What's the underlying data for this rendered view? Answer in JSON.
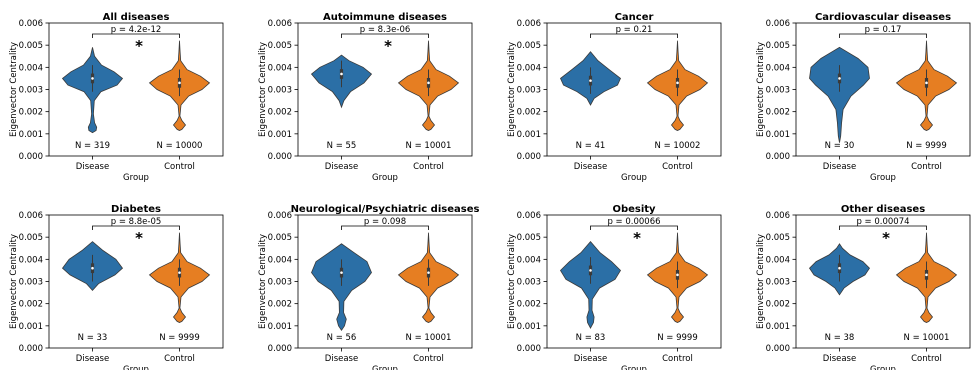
{
  "colors": {
    "disease": "#2b6fa6",
    "control": "#e67e22"
  },
  "chart_data": [
    {
      "type": "violin",
      "title": "All diseases",
      "xlabel": "Group",
      "ylabel": "Eigenvector Centrality",
      "categories": [
        "Disease",
        "Control"
      ],
      "ylim": [
        0,
        0.006
      ],
      "yticks": [
        "0.000",
        "0.001",
        "0.002",
        "0.003",
        "0.004",
        "0.005",
        "0.006"
      ],
      "p_label": "p = 4.2e-12",
      "significant": true,
      "n_labels": [
        "N = 319",
        "N = 10000"
      ],
      "medians": [
        0.0035,
        0.0033
      ]
    },
    {
      "type": "violin",
      "title": "Autoimmune diseases",
      "xlabel": "Group",
      "ylabel": "Eigenvector Centrality",
      "categories": [
        "Disease",
        "Control"
      ],
      "ylim": [
        0,
        0.006
      ],
      "yticks": [
        "0.000",
        "0.001",
        "0.002",
        "0.003",
        "0.004",
        "0.005",
        "0.006"
      ],
      "p_label": "p = 8.3e-06",
      "significant": true,
      "n_labels": [
        "N = 55",
        "N = 10001"
      ],
      "medians": [
        0.0037,
        0.0033
      ]
    },
    {
      "type": "violin",
      "title": "Cancer",
      "xlabel": "Group",
      "ylabel": "Eigenvector Centrality",
      "categories": [
        "Disease",
        "Control"
      ],
      "ylim": [
        0,
        0.006
      ],
      "yticks": [
        "0.000",
        "0.001",
        "0.002",
        "0.003",
        "0.004",
        "0.005",
        "0.006"
      ],
      "p_label": "p = 0.21",
      "significant": false,
      "n_labels": [
        "N = 41",
        "N = 10002"
      ],
      "medians": [
        0.0034,
        0.0033
      ]
    },
    {
      "type": "violin",
      "title": "Cardiovascular diseases",
      "xlabel": "Group",
      "ylabel": "Eigenvector Centrality",
      "categories": [
        "Disease",
        "Control"
      ],
      "ylim": [
        0,
        0.006
      ],
      "yticks": [
        "0.000",
        "0.001",
        "0.002",
        "0.003",
        "0.004",
        "0.005",
        "0.006"
      ],
      "p_label": "p = 0.17",
      "significant": false,
      "n_labels": [
        "N = 30",
        "N = 9999"
      ],
      "medians": [
        0.0035,
        0.0033
      ]
    },
    {
      "type": "violin",
      "title": "Diabetes",
      "xlabel": "Group",
      "ylabel": "Eigenvector Centrality",
      "categories": [
        "Disease",
        "Control"
      ],
      "ylim": [
        0,
        0.006
      ],
      "yticks": [
        "0.000",
        "0.001",
        "0.002",
        "0.003",
        "0.004",
        "0.005",
        "0.006"
      ],
      "p_label": "p = 8.8e-05",
      "significant": true,
      "n_labels": [
        "N = 33",
        "N = 9999"
      ],
      "medians": [
        0.0036,
        0.0034
      ]
    },
    {
      "type": "violin",
      "title": "Neurological/Psychiatric diseases",
      "xlabel": "Group",
      "ylabel": "Eigenvector Centrality",
      "categories": [
        "Disease",
        "Control"
      ],
      "ylim": [
        0,
        0.006
      ],
      "yticks": [
        "0.000",
        "0.001",
        "0.002",
        "0.003",
        "0.004",
        "0.005",
        "0.006"
      ],
      "p_label": "p = 0.098",
      "significant": false,
      "n_labels": [
        "N = 56",
        "N = 10001"
      ],
      "medians": [
        0.0034,
        0.0034
      ]
    },
    {
      "type": "violin",
      "title": "Obesity",
      "xlabel": "Group",
      "ylabel": "Eigenvector Centrality",
      "categories": [
        "Disease",
        "Control"
      ],
      "ylim": [
        0,
        0.006
      ],
      "yticks": [
        "0.000",
        "0.001",
        "0.002",
        "0.003",
        "0.004",
        "0.005",
        "0.006"
      ],
      "p_label": "p = 0.00066",
      "significant": true,
      "n_labels": [
        "N = 83",
        "N = 9999"
      ],
      "medians": [
        0.0035,
        0.0033
      ]
    },
    {
      "type": "violin",
      "title": "Other diseases",
      "xlabel": "Group",
      "ylabel": "Eigenvector Centrality",
      "categories": [
        "Disease",
        "Control"
      ],
      "ylim": [
        0,
        0.006
      ],
      "yticks": [
        "0.000",
        "0.001",
        "0.002",
        "0.003",
        "0.004",
        "0.005",
        "0.006"
      ],
      "p_label": "p = 0.00074",
      "significant": true,
      "n_labels": [
        "N = 38",
        "N = 10001"
      ],
      "medians": [
        0.0036,
        0.0033
      ]
    }
  ]
}
